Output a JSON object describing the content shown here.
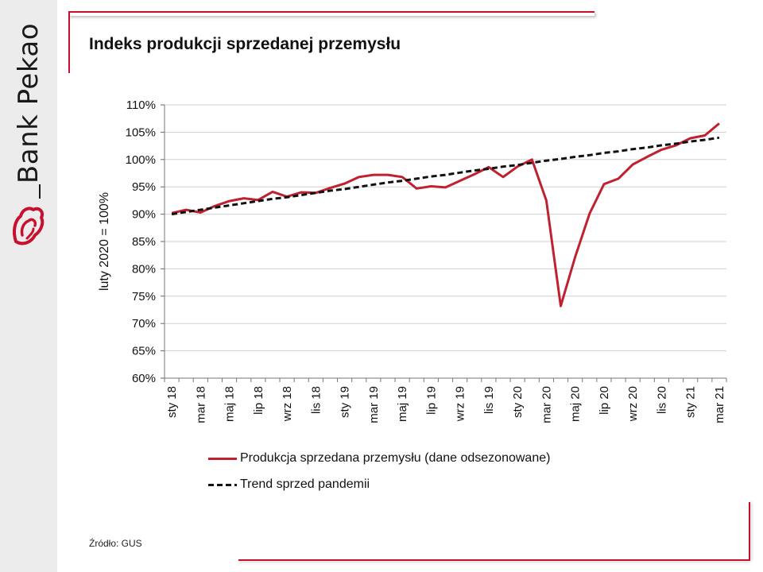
{
  "brand": {
    "name": "Bank Pekao",
    "accent": "#c8102e"
  },
  "title": "Indeks produkcji sprzedanej przemysłu",
  "source": "Źródło: GUS",
  "chart_data": {
    "type": "line",
    "title": "Indeks produkcji sprzedanej przemysłu",
    "ylabel": "luty 2020 = 100%",
    "xlabel": "",
    "ylim": [
      60,
      110
    ],
    "y_ticks": [
      "60%",
      "65%",
      "70%",
      "75%",
      "80%",
      "85%",
      "90%",
      "95%",
      "100%",
      "105%",
      "110%"
    ],
    "y_tick_values": [
      60,
      65,
      70,
      75,
      80,
      85,
      90,
      95,
      100,
      105,
      110
    ],
    "grid": true,
    "legend_position": "bottom",
    "categories": [
      "sty 18",
      "lut 18",
      "mar 18",
      "kwi 18",
      "maj 18",
      "cze 18",
      "lip 18",
      "sie 18",
      "wrz 18",
      "paź 18",
      "lis 18",
      "gru 18",
      "sty 19",
      "lut 19",
      "mar 19",
      "kwi 19",
      "maj 19",
      "cze 19",
      "lip 19",
      "sie 19",
      "wrz 19",
      "paź 19",
      "lis 19",
      "gru 19",
      "sty 20",
      "lut 20",
      "mar 20",
      "kwi 20",
      "maj 20",
      "cze 20",
      "lip 20",
      "sie 20",
      "wrz 20",
      "paź 20",
      "lis 20",
      "gru 20",
      "sty 21",
      "lut 21",
      "mar 21"
    ],
    "x_tick_labels": [
      "sty 18",
      "mar 18",
      "maj 18",
      "lip 18",
      "wrz 18",
      "lis 18",
      "sty 19",
      "mar 19",
      "maj 19",
      "lip 19",
      "wrz 19",
      "lis 19",
      "sty 20",
      "mar 20",
      "maj 20",
      "lip 20",
      "wrz 20",
      "lis 20",
      "sty 21",
      "mar 21"
    ],
    "series": [
      {
        "name": "Produkcja sprzedana przemysłu (dane odsezonowane)",
        "color": "#c0212e",
        "style": "solid",
        "values": [
          90.2,
          90.8,
          90.3,
          91.5,
          92.4,
          92.9,
          92.6,
          94.1,
          93.2,
          94.0,
          93.9,
          94.8,
          95.6,
          96.8,
          97.2,
          97.2,
          96.8,
          94.7,
          95.1,
          94.9,
          96.1,
          97.3,
          98.6,
          96.8,
          98.7,
          100.0,
          92.5,
          73.2,
          82.2,
          90.1,
          95.5,
          96.5,
          99.1,
          100.5,
          101.8,
          102.6,
          103.9,
          104.4,
          106.6
        ]
      },
      {
        "name": "Trend sprzed pandemii",
        "color": "#111111",
        "style": "dashed",
        "values": [
          90.0,
          90.4,
          90.8,
          91.2,
          91.6,
          92.0,
          92.4,
          92.8,
          93.1,
          93.5,
          93.9,
          94.3,
          94.6,
          95.0,
          95.4,
          95.8,
          96.1,
          96.5,
          96.9,
          97.2,
          97.6,
          98.0,
          98.3,
          98.7,
          99.0,
          99.4,
          99.8,
          100.1,
          100.5,
          100.8,
          101.2,
          101.5,
          101.9,
          102.2,
          102.6,
          102.9,
          103.3,
          103.6,
          104.0
        ]
      }
    ]
  }
}
